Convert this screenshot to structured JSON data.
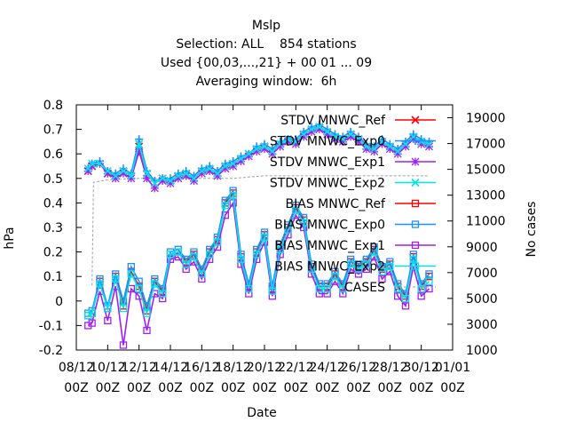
{
  "chart_data": {
    "type": "line",
    "title_lines": [
      "Mslp",
      "Selection: ALL    854 stations",
      "Used {00,03,...,21} + 00 01 ... 09",
      "Averaging window:  6h"
    ],
    "xlabel": "Date",
    "ylabel": "hPa",
    "y2label": "No cases",
    "xlim": [
      0,
      24
    ],
    "ylim": [
      -0.2,
      0.8
    ],
    "y2lim": [
      1000,
      20000
    ],
    "x_ticks": [
      {
        "x": 0,
        "line1": "08/12",
        "line2": "00Z"
      },
      {
        "x": 2,
        "line1": "10/12",
        "line2": "00Z"
      },
      {
        "x": 4,
        "line1": "12/12",
        "line2": "00Z"
      },
      {
        "x": 6,
        "line1": "14/12",
        "line2": "00Z"
      },
      {
        "x": 8,
        "line1": "16/12",
        "line2": "00Z"
      },
      {
        "x": 10,
        "line1": "18/12",
        "line2": "00Z"
      },
      {
        "x": 12,
        "line1": "20/12",
        "line2": "00Z"
      },
      {
        "x": 14,
        "line1": "22/12",
        "line2": "00Z"
      },
      {
        "x": 16,
        "line1": "24/12",
        "line2": "00Z"
      },
      {
        "x": 18,
        "line1": "26/12",
        "line2": "00Z"
      },
      {
        "x": 20,
        "line1": "28/12",
        "line2": "00Z"
      },
      {
        "x": 22,
        "line1": "30/12",
        "line2": "00Z"
      },
      {
        "x": 24,
        "line1": "01/01",
        "line2": "00Z"
      }
    ],
    "y_ticks": [
      "-0.2",
      "-0.1",
      "0",
      "0.1",
      "0.2",
      "0.3",
      "0.4",
      "0.5",
      "0.6",
      "0.7",
      "0.8"
    ],
    "y2_ticks": [
      "1000",
      "3000",
      "5000",
      "7000",
      "9000",
      "11000",
      "13000",
      "15000",
      "17000",
      "19000"
    ],
    "legend_position": "top-right",
    "series": [
      {
        "name": "STDV MNWC_Ref",
        "axis": "y",
        "color": "#ff0000",
        "marker": "x",
        "x": [
          0.75,
          1.0,
          1.5,
          2.0,
          2.5,
          3.0,
          3.5,
          4.0,
          4.5,
          5.0,
          5.5,
          6.0,
          6.5,
          7.0,
          7.5,
          8.0,
          8.5,
          9.0,
          9.5,
          10.0,
          10.5,
          11.0,
          11.5,
          12.0,
          12.5,
          13.0,
          13.5,
          14.0,
          14.5,
          15.0,
          15.5,
          16.0,
          16.5,
          17.0,
          17.5,
          18.0,
          18.5,
          19.0,
          19.5,
          20.0,
          20.5,
          21.0,
          21.5,
          22.0,
          22.5
        ],
        "y": [
          0.53,
          0.55,
          0.56,
          0.52,
          0.51,
          0.53,
          0.51,
          0.63,
          0.52,
          0.48,
          0.5,
          0.49,
          0.51,
          0.52,
          0.5,
          0.53,
          0.54,
          0.52,
          0.55,
          0.56,
          0.58,
          0.6,
          0.62,
          0.63,
          0.61,
          0.64,
          0.66,
          0.65,
          0.68,
          0.7,
          0.71,
          0.69,
          0.67,
          0.66,
          0.68,
          0.66,
          0.63,
          0.62,
          0.65,
          0.63,
          0.61,
          0.64,
          0.67,
          0.65,
          0.64
        ]
      },
      {
        "name": "STDV MNWC_Exp0",
        "axis": "y",
        "color": "#1e90ff",
        "marker": "+",
        "x": [
          0.75,
          1.0,
          1.5,
          2.0,
          2.5,
          3.0,
          3.5,
          4.0,
          4.5,
          5.0,
          5.5,
          6.0,
          6.5,
          7.0,
          7.5,
          8.0,
          8.5,
          9.0,
          9.5,
          10.0,
          10.5,
          11.0,
          11.5,
          12.0,
          12.5,
          13.0,
          13.5,
          14.0,
          14.5,
          15.0,
          15.5,
          16.0,
          16.5,
          17.0,
          17.5,
          18.0,
          18.5,
          19.0,
          19.5,
          20.0,
          20.5,
          21.0,
          21.5,
          22.0,
          22.5
        ],
        "y": [
          0.54,
          0.56,
          0.57,
          0.53,
          0.52,
          0.54,
          0.52,
          0.66,
          0.53,
          0.49,
          0.5,
          0.5,
          0.52,
          0.53,
          0.51,
          0.54,
          0.55,
          0.53,
          0.56,
          0.57,
          0.59,
          0.6,
          0.63,
          0.64,
          0.62,
          0.65,
          0.66,
          0.66,
          0.69,
          0.71,
          0.72,
          0.7,
          0.68,
          0.67,
          0.69,
          0.67,
          0.64,
          0.63,
          0.66,
          0.64,
          0.62,
          0.65,
          0.68,
          0.66,
          0.65
        ]
      },
      {
        "name": "STDV MNWC_Exp1",
        "axis": "y",
        "color": "#a020f0",
        "marker": "*",
        "x": [
          0.75,
          1.0,
          1.5,
          2.0,
          2.5,
          3.0,
          3.5,
          4.0,
          4.5,
          5.0,
          5.5,
          6.0,
          6.5,
          7.0,
          7.5,
          8.0,
          8.5,
          9.0,
          9.5,
          10.0,
          10.5,
          11.0,
          11.5,
          12.0,
          12.5,
          13.0,
          13.5,
          14.0,
          14.5,
          15.0,
          15.5,
          16.0,
          16.5,
          17.0,
          17.5,
          18.0,
          18.5,
          19.0,
          19.5,
          20.0,
          20.5,
          21.0,
          21.5,
          22.0,
          22.5
        ],
        "y": [
          0.53,
          0.55,
          0.56,
          0.52,
          0.5,
          0.52,
          0.5,
          0.61,
          0.5,
          0.46,
          0.49,
          0.48,
          0.5,
          0.51,
          0.49,
          0.52,
          0.53,
          0.51,
          0.54,
          0.55,
          0.57,
          0.59,
          0.61,
          0.62,
          0.6,
          0.63,
          0.65,
          0.64,
          0.67,
          0.69,
          0.7,
          0.68,
          0.66,
          0.65,
          0.67,
          0.65,
          0.62,
          0.61,
          0.64,
          0.62,
          0.6,
          0.63,
          0.66,
          0.64,
          0.63
        ]
      },
      {
        "name": "STDV MNWC_Exp2",
        "axis": "y",
        "color": "#00e5e5",
        "marker": "x",
        "x": [
          0.75,
          1.0,
          1.5,
          2.0,
          2.5,
          3.0,
          3.5,
          4.0,
          4.5,
          5.0,
          5.5,
          6.0,
          6.5,
          7.0,
          7.5,
          8.0,
          8.5,
          9.0,
          9.5,
          10.0,
          10.5,
          11.0,
          11.5,
          12.0,
          12.5,
          13.0,
          13.5,
          14.0,
          14.5,
          15.0,
          15.5,
          16.0,
          16.5,
          17.0,
          17.5,
          18.0,
          18.5,
          19.0,
          19.5,
          20.0,
          20.5,
          21.0,
          21.5,
          22.0,
          22.5
        ],
        "y": [
          0.54,
          0.56,
          0.56,
          0.53,
          0.51,
          0.53,
          0.51,
          0.64,
          0.52,
          0.48,
          0.5,
          0.49,
          0.51,
          0.52,
          0.5,
          0.53,
          0.54,
          0.52,
          0.55,
          0.56,
          0.58,
          0.6,
          0.62,
          0.63,
          0.61,
          0.64,
          0.66,
          0.65,
          0.68,
          0.7,
          0.71,
          0.69,
          0.67,
          0.66,
          0.68,
          0.66,
          0.63,
          0.62,
          0.65,
          0.63,
          0.61,
          0.64,
          0.67,
          0.65,
          0.64
        ]
      },
      {
        "name": "BIAS MNWC_Ref",
        "axis": "y",
        "color": "#ff0000",
        "marker": "square",
        "x": [
          0.75,
          1.0,
          1.5,
          2.0,
          2.5,
          3.0,
          3.5,
          4.0,
          4.5,
          5.0,
          5.5,
          6.0,
          6.5,
          7.0,
          7.5,
          8.0,
          8.5,
          9.0,
          9.5,
          10.0,
          10.5,
          11.0,
          11.5,
          12.0,
          12.5,
          13.0,
          13.5,
          14.0,
          14.5,
          15.0,
          15.5,
          16.0,
          16.5,
          17.0,
          17.5,
          18.0,
          18.5,
          19.0,
          19.5,
          20.0,
          20.5,
          21.0,
          21.5,
          22.0,
          22.5
        ],
        "y": [
          -0.06,
          -0.05,
          0.08,
          -0.03,
          0.1,
          -0.02,
          0.12,
          0.06,
          -0.04,
          0.08,
          0.04,
          0.19,
          0.2,
          0.16,
          0.19,
          0.12,
          0.2,
          0.25,
          0.4,
          0.44,
          0.18,
          0.06,
          0.2,
          0.27,
          0.05,
          0.22,
          0.3,
          0.38,
          0.33,
          0.14,
          0.06,
          0.06,
          0.11,
          0.06,
          0.16,
          0.14,
          0.16,
          0.21,
          0.13,
          0.15,
          0.06,
          0.02,
          0.18,
          0.06,
          0.1
        ]
      },
      {
        "name": "BIAS MNWC_Exp0",
        "axis": "y",
        "color": "#1e90ff",
        "marker": "square",
        "x": [
          0.75,
          1.0,
          1.5,
          2.0,
          2.5,
          3.0,
          3.5,
          4.0,
          4.5,
          5.0,
          5.5,
          6.0,
          6.5,
          7.0,
          7.5,
          8.0,
          8.5,
          9.0,
          9.5,
          10.0,
          10.5,
          11.0,
          11.5,
          12.0,
          12.5,
          13.0,
          13.5,
          14.0,
          14.5,
          15.0,
          15.5,
          16.0,
          16.5,
          17.0,
          17.5,
          18.0,
          18.5,
          19.0,
          19.5,
          20.0,
          20.5,
          21.0,
          21.5,
          22.0,
          22.5
        ],
        "y": [
          -0.05,
          -0.04,
          0.09,
          -0.02,
          0.11,
          0.0,
          0.14,
          0.08,
          -0.02,
          0.09,
          0.05,
          0.2,
          0.21,
          0.17,
          0.2,
          0.13,
          0.21,
          0.26,
          0.41,
          0.45,
          0.19,
          0.07,
          0.21,
          0.28,
          0.06,
          0.23,
          0.31,
          0.39,
          0.34,
          0.15,
          0.07,
          0.07,
          0.12,
          0.07,
          0.17,
          0.15,
          0.17,
          0.22,
          0.14,
          0.16,
          0.07,
          0.03,
          0.19,
          0.07,
          0.11
        ]
      },
      {
        "name": "BIAS MNWC_Exp1",
        "axis": "y",
        "color": "#a020f0",
        "marker": "square",
        "x": [
          0.75,
          1.0,
          1.5,
          2.0,
          2.5,
          3.0,
          3.5,
          4.0,
          4.5,
          5.0,
          5.5,
          6.0,
          6.5,
          7.0,
          7.5,
          8.0,
          8.5,
          9.0,
          9.5,
          10.0,
          10.5,
          11.0,
          11.5,
          12.0,
          12.5,
          13.0,
          13.5,
          14.0,
          14.5,
          15.0,
          15.5,
          16.0,
          16.5,
          17.0,
          17.5,
          18.0,
          18.5,
          19.0,
          19.5,
          20.0,
          20.5,
          21.0,
          21.5,
          22.0,
          22.5
        ],
        "y": [
          -0.1,
          -0.09,
          0.04,
          -0.08,
          0.06,
          -0.18,
          0.05,
          0.02,
          -0.12,
          0.03,
          0.01,
          0.17,
          0.18,
          0.13,
          0.16,
          0.09,
          0.17,
          0.22,
          0.35,
          0.4,
          0.15,
          0.03,
          0.17,
          0.24,
          0.02,
          0.19,
          0.27,
          0.35,
          0.3,
          0.11,
          0.03,
          0.03,
          0.08,
          0.03,
          0.13,
          0.11,
          0.13,
          0.18,
          0.09,
          0.12,
          0.02,
          -0.02,
          0.14,
          0.02,
          0.05
        ]
      },
      {
        "name": "BIAS MNWC_Exp2",
        "axis": "y",
        "color": "#00e5e5",
        "marker": "square",
        "x": [
          0.75,
          1.0,
          1.5,
          2.0,
          2.5,
          3.0,
          3.5,
          4.0,
          4.5,
          5.0,
          5.5,
          6.0,
          6.5,
          7.0,
          7.5,
          8.0,
          8.5,
          9.0,
          9.5,
          10.0,
          10.5,
          11.0,
          11.5,
          12.0,
          12.5,
          13.0,
          13.5,
          14.0,
          14.5,
          15.0,
          15.5,
          16.0,
          16.5,
          17.0,
          17.5,
          18.0,
          18.5,
          19.0,
          19.5,
          20.0,
          20.5,
          21.0,
          21.5,
          22.0,
          22.5
        ],
        "y": [
          -0.06,
          -0.05,
          0.07,
          -0.03,
          0.09,
          -0.03,
          0.11,
          0.05,
          -0.05,
          0.07,
          0.03,
          0.19,
          0.2,
          0.15,
          0.18,
          0.11,
          0.19,
          0.24,
          0.39,
          0.43,
          0.17,
          0.05,
          0.19,
          0.26,
          0.04,
          0.21,
          0.29,
          0.37,
          0.32,
          0.13,
          0.05,
          0.05,
          0.1,
          0.05,
          0.15,
          0.13,
          0.15,
          0.2,
          0.12,
          0.14,
          0.05,
          0.01,
          0.17,
          0.05,
          0.08
        ]
      },
      {
        "name": "CASES",
        "axis": "y2",
        "color": "#a0a0a0",
        "marker": "none",
        "x": [
          1.0,
          1.1,
          2.0,
          4.0,
          6.0,
          8.0,
          10.0,
          11.0,
          12.0,
          13.0,
          14.0,
          16.0,
          18.0,
          20.0,
          22.0,
          22.5
        ],
        "y": [
          6000,
          14000,
          14200,
          14300,
          14300,
          14300,
          14300,
          14400,
          14500,
          14500,
          14500,
          14500,
          14500,
          14500,
          14500,
          14500
        ]
      }
    ]
  }
}
